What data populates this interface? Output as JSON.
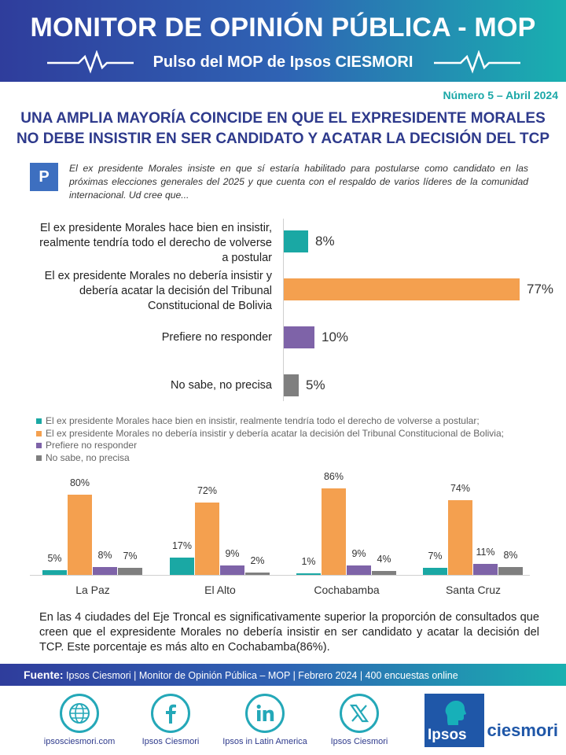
{
  "header": {
    "title": "MONITOR DE OPINIÓN PÚBLICA - MOP",
    "subtitle": "Pulso del MOP de Ipsos CIESMORI"
  },
  "issue": "Número 5 – Abril 2024",
  "headline": {
    "line1": "UNA AMPLIA MAYORÍA COINCIDE EN QUE EL EXPRESIDENTE MORALES",
    "line2": "NO DEBE INSISTIR EN SER CANDIDATO Y ACATAR LA DECISIÓN DEL TCP"
  },
  "question": {
    "badge": "P",
    "text": "El ex presidente Morales insiste en que sí estaría habilitado para postularse como candidato en las próximas elecciones generales del 2025 y que cuenta con el respaldo de varios líderes de la comunidad internacional.  Ud cree que..."
  },
  "colors": {
    "teal": "#1aa8a4",
    "orange": "#f4a04f",
    "purple": "#7e63a8",
    "gray": "#7f7f7f"
  },
  "chart_data": [
    {
      "type": "bar",
      "orientation": "horizontal",
      "categories": [
        "El ex presidente Morales hace bien en insistir, realmente tendría todo el derecho de volverse a postular",
        "El ex presidente Morales no debería insistir y debería acatar la decisión del Tribunal Constitucional de Bolivia",
        "Prefiere no responder",
        "No sabe, no precisa"
      ],
      "values": [
        8,
        77,
        10,
        5
      ],
      "value_labels": [
        "8%",
        "77%",
        "10%",
        "5%"
      ],
      "xlim": [
        0,
        100
      ]
    },
    {
      "type": "bar",
      "orientation": "vertical",
      "categories": [
        "La Paz",
        "El Alto",
        "Cochabamba",
        "Santa Cruz"
      ],
      "legend": [
        "El ex presidente Morales hace bien en insistir, realmente tendría todo el derecho de volverse a postular;",
        "El ex presidente Morales no debería insistir y debería acatar la decisión del Tribunal Constitucional de Bolivia;",
        "Prefiere no responder",
        "No sabe, no precisa"
      ],
      "series": [
        {
          "name": "Hace bien en insistir",
          "values": [
            5,
            17,
            1,
            7
          ],
          "labels": [
            "5%",
            "17%",
            "1%",
            "7%"
          ]
        },
        {
          "name": "No debería insistir",
          "values": [
            80,
            72,
            86,
            74
          ],
          "labels": [
            "80%",
            "72%",
            "86%",
            "74%"
          ]
        },
        {
          "name": "Prefiere no responder",
          "values": [
            8,
            9,
            9,
            11
          ],
          "labels": [
            "8%",
            "9%",
            "9%",
            "11%"
          ]
        },
        {
          "name": "No sabe, no precisa",
          "values": [
            7,
            2,
            4,
            8
          ],
          "labels": [
            "7%",
            "2%",
            "4%",
            "8%"
          ]
        }
      ],
      "ylim": [
        0,
        100
      ]
    }
  ],
  "conclusion": "En las 4 ciudades del Eje Troncal es significativamente superior la proporción de consultados que creen que el expresidente Morales no debería insistir en ser candidato y acatar la decisión del TCP.  Este porcentaje es más alto en Cochabamba(86%).",
  "source": {
    "label": "Fuente:",
    "text": " Ipsos Ciesmori | Monitor de Opinión Pública – MOP | Febrero  2024 | 400 encuestas online"
  },
  "footer": {
    "links": [
      {
        "icon": "globe-icon",
        "label": "ipsosciesmori.com"
      },
      {
        "icon": "facebook-icon",
        "label": "Ipsos Ciesmori"
      },
      {
        "icon": "linkedin-icon",
        "label": "Ipsos in Latin America"
      },
      {
        "icon": "x-icon",
        "label": "Ipsos Ciesmori"
      }
    ],
    "logo": {
      "box": "Ipsos",
      "word": "ciesmori"
    }
  }
}
